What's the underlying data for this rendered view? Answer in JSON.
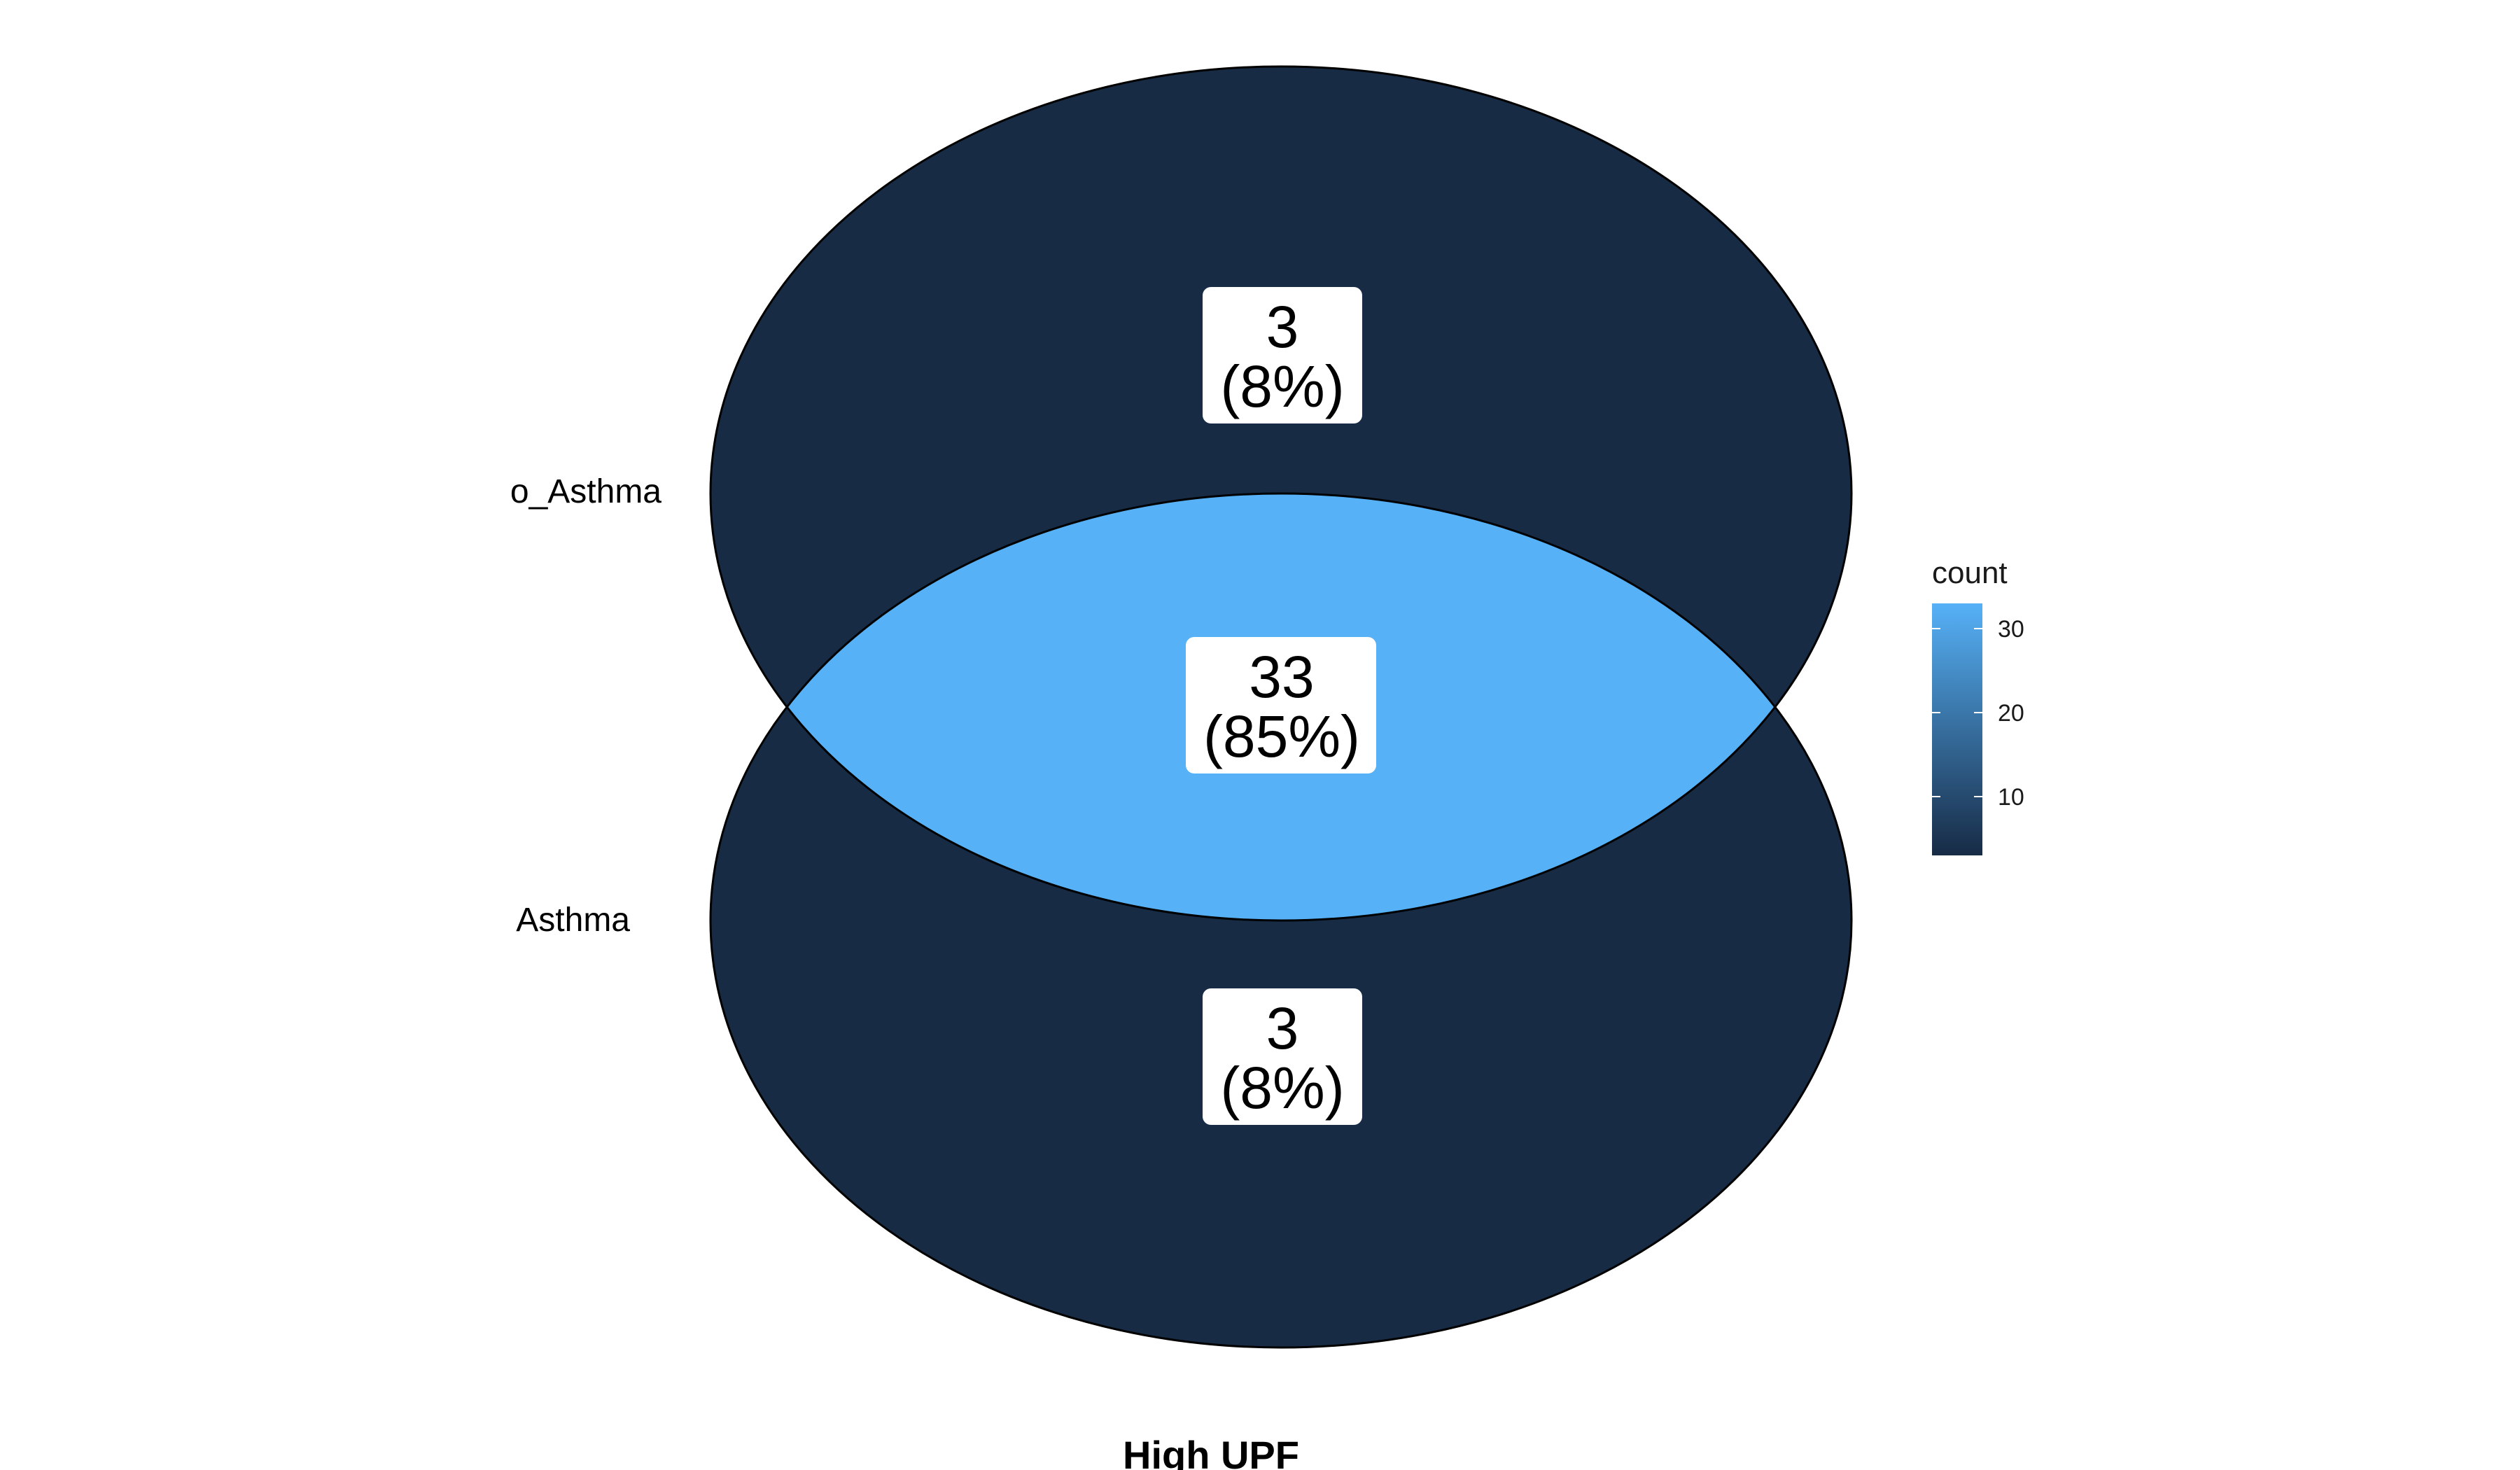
{
  "title": "High UPF",
  "sets": [
    {
      "name": "o_Asthma"
    },
    {
      "name": "Asthma"
    }
  ],
  "regions": [
    {
      "id": "o_asthma_only",
      "count": "3",
      "percent": "(8%)",
      "count_value": 3
    },
    {
      "id": "intersection",
      "count": "33",
      "percent": "(85%)",
      "count_value": 33
    },
    {
      "id": "asthma_only",
      "count": "3",
      "percent": "(8%)",
      "count_value": 3
    }
  ],
  "legend": {
    "title": "count",
    "ticks": [
      {
        "label": "30",
        "value": 30
      },
      {
        "label": "20",
        "value": 20
      },
      {
        "label": "10",
        "value": 10
      }
    ],
    "min": 3,
    "max": 33,
    "low_color": "#172B45",
    "high_color": "#56B1F7"
  },
  "colors": {
    "outline": "#000000",
    "label_box": "#ffffff"
  }
}
